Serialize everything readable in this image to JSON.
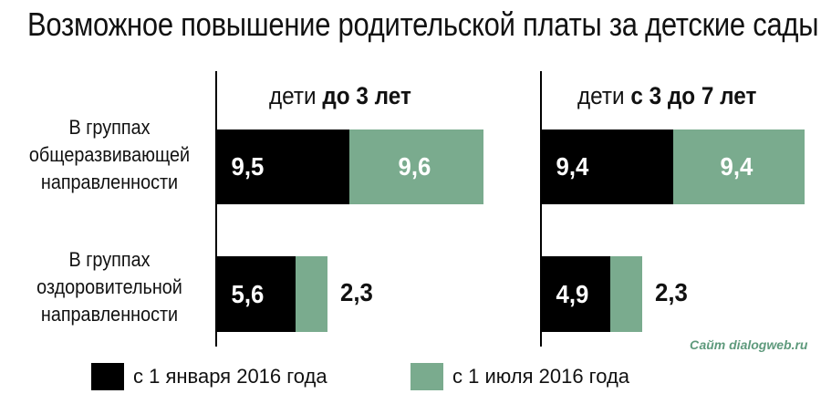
{
  "title": "Возможное повышение родительской платы за детские сады, %",
  "source": "Сайт dialogweb.ru",
  "colors": {
    "jan": "#000000",
    "jul": "#7aab8e"
  },
  "chart_data": {
    "type": "bar",
    "orientation": "horizontal",
    "stacked": true,
    "categories": [
      "В группах общеразвивающей направленности",
      "В группах оздоровительной направленности"
    ],
    "panels": [
      {
        "title_prefix": "дети ",
        "title_bold": "до 3 лет",
        "series": [
          {
            "name": "с 1 января 2016 года",
            "values": [
              9.5,
              5.6
            ],
            "labels": [
              "9,5",
              "5,6"
            ]
          },
          {
            "name": "с 1 июля 2016 года",
            "values": [
              9.6,
              2.3
            ],
            "labels": [
              "9,6",
              "2,3"
            ]
          }
        ]
      },
      {
        "title_prefix": "дети ",
        "title_bold": "с 3 до 7 лет",
        "series": [
          {
            "name": "с 1 января 2016 года",
            "values": [
              9.4,
              4.9
            ],
            "labels": [
              "9,4",
              "4,9"
            ]
          },
          {
            "name": "с 1 июля 2016 года",
            "values": [
              9.4,
              2.3
            ],
            "labels": [
              "9,4",
              "2,3"
            ]
          }
        ]
      }
    ],
    "legend": [
      "с 1 января 2016 года",
      "с 1 июля 2016 года"
    ],
    "legend_position": "bottom"
  },
  "row_labels": [
    [
      "В группах",
      "общеразвивающей",
      "направленности"
    ],
    [
      "В группах",
      "оздоровительной",
      "направленности"
    ]
  ]
}
